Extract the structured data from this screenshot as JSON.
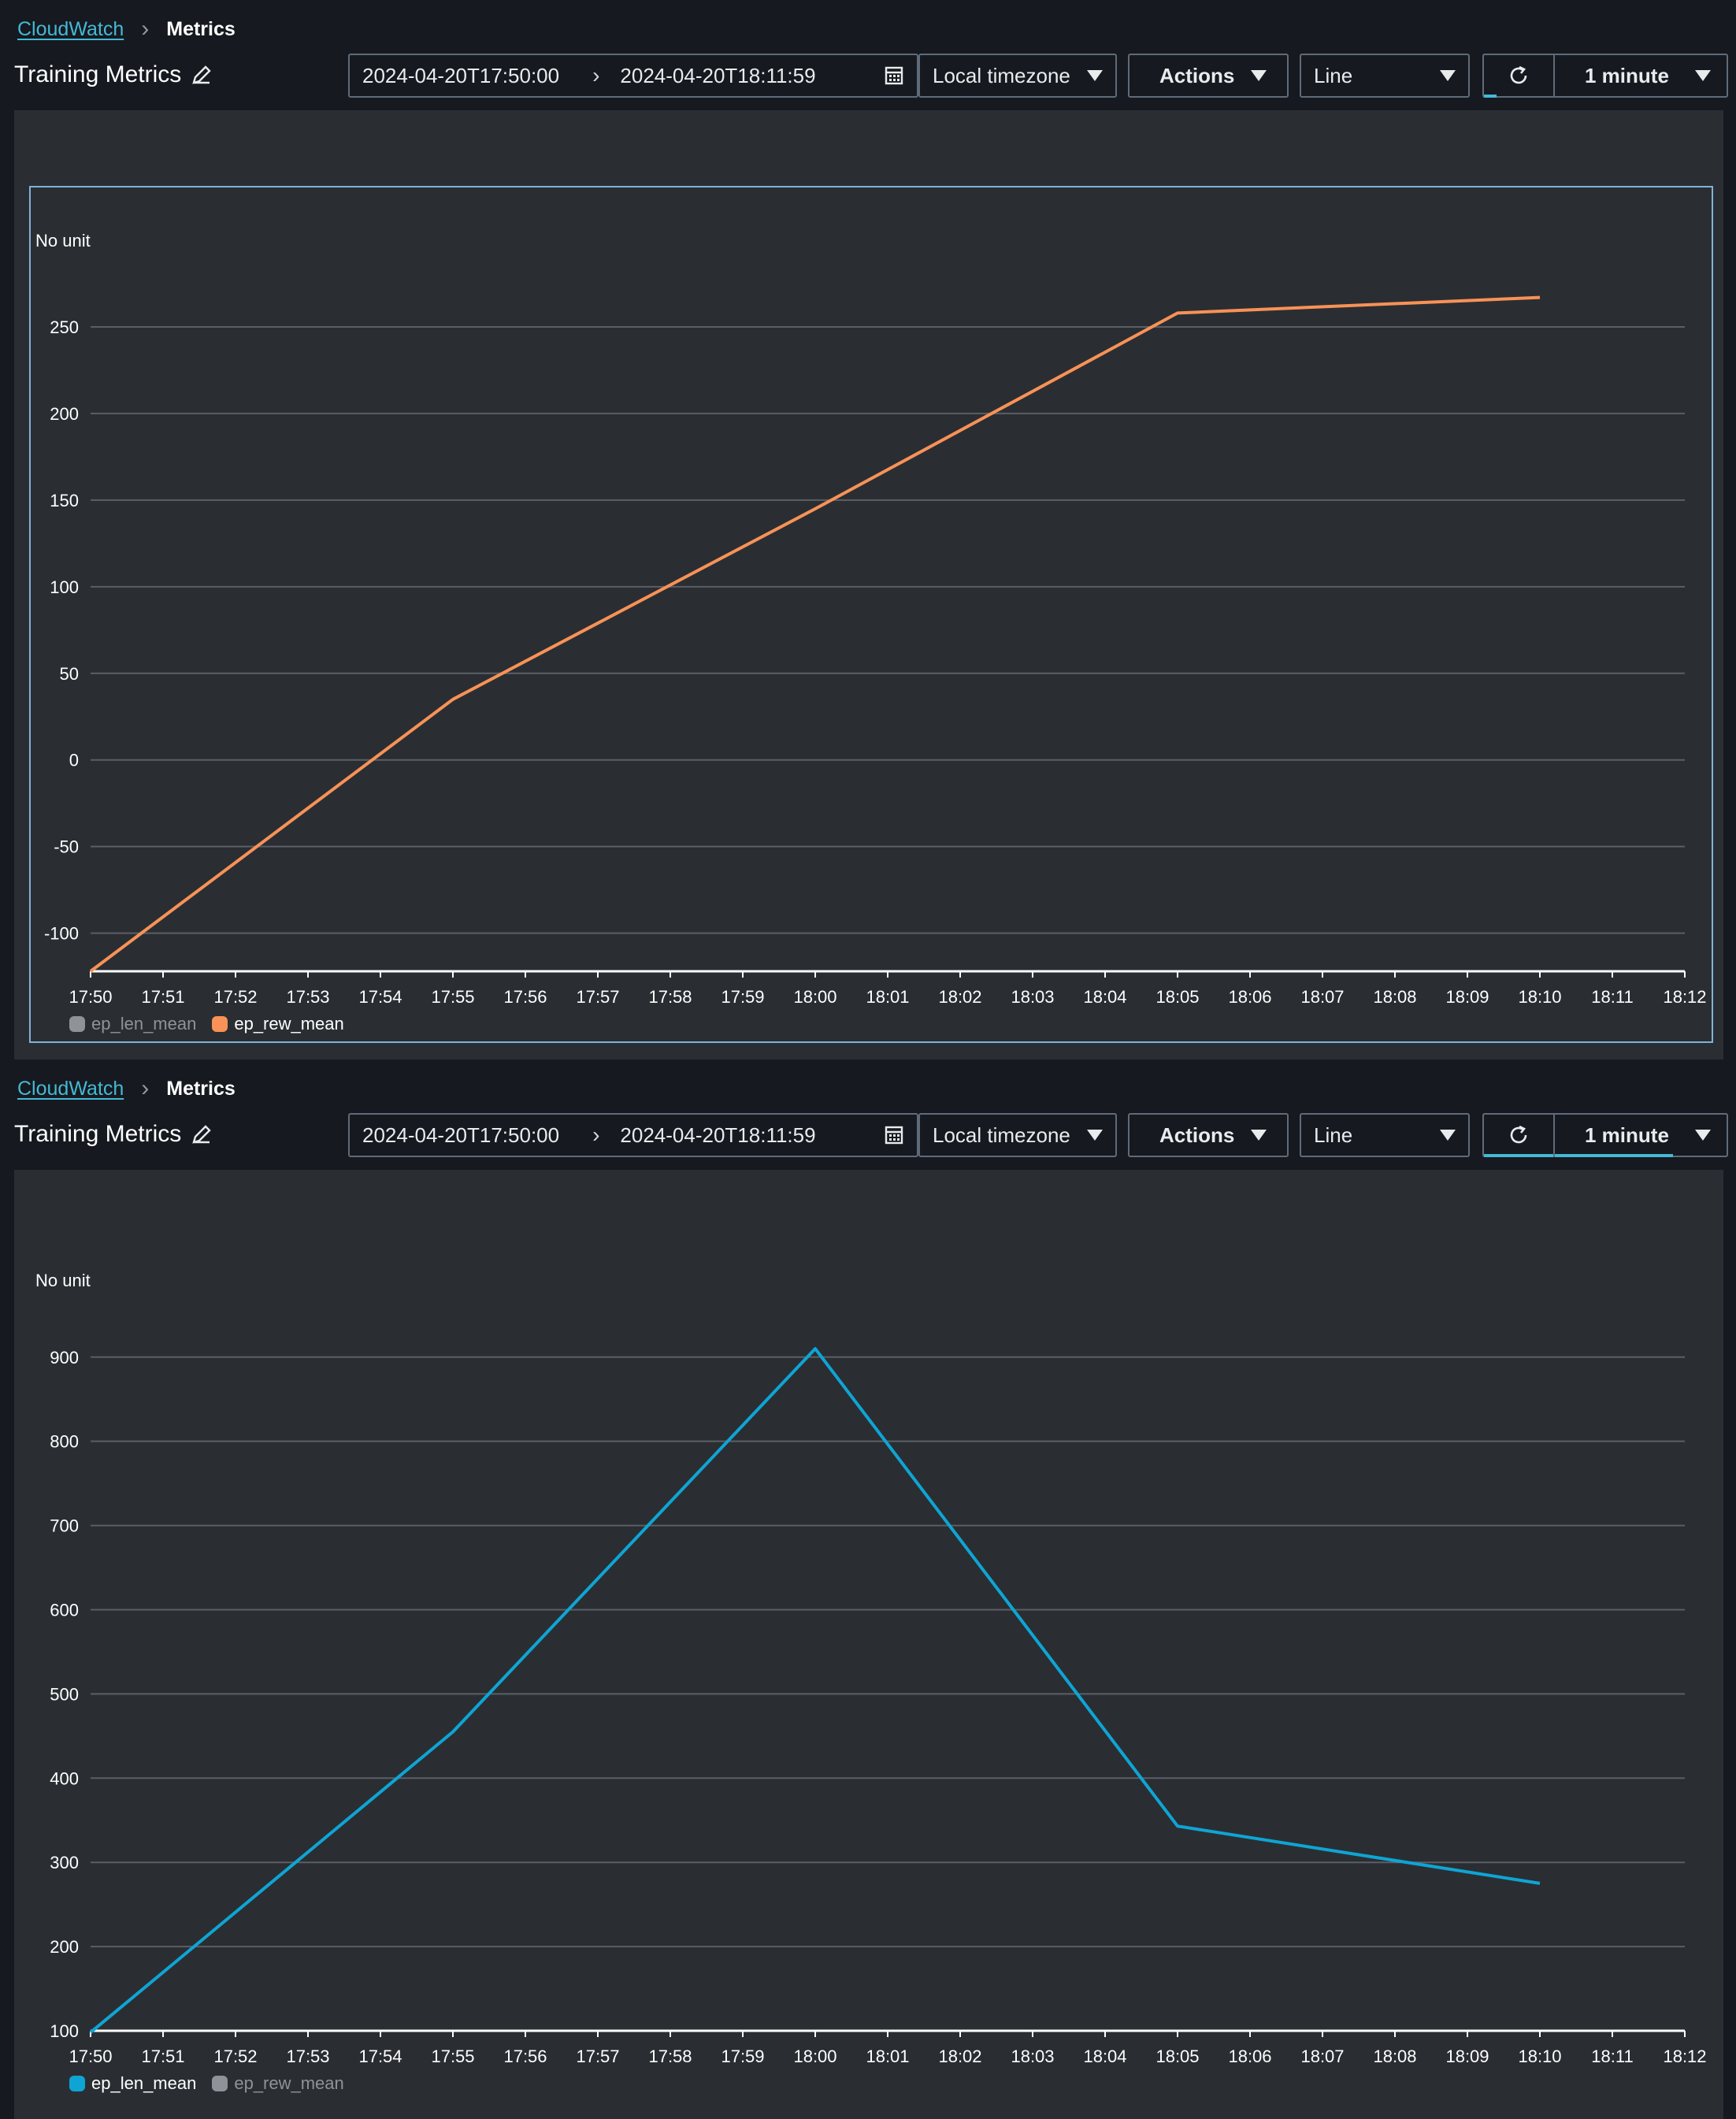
{
  "breadcrumb": {
    "root": "CloudWatch",
    "current": "Metrics"
  },
  "header": {
    "title": "Training Metrics",
    "start_time": "2024-04-20T17:50:00",
    "end_time": "2024-04-20T18:11:59",
    "timezone": "Local timezone",
    "actions_label": "Actions",
    "chart_type": "Line",
    "period": "1 minute"
  },
  "colors": {
    "ep_len_mean": "#0ea5d4",
    "ep_rew_mean": "#f89256",
    "inactive": "#8d9399"
  },
  "icons": [
    "edit-icon",
    "calendar-icon",
    "chevron-right-icon",
    "caret-down-icon",
    "refresh-icon"
  ],
  "chart_data": [
    {
      "type": "line",
      "unit_label": "No unit",
      "x_ticks": [
        "17:50",
        "17:51",
        "17:52",
        "17:53",
        "17:54",
        "17:55",
        "17:56",
        "17:57",
        "17:58",
        "17:59",
        "18:00",
        "18:01",
        "18:02",
        "18:03",
        "18:04",
        "18:05",
        "18:06",
        "18:07",
        "18:08",
        "18:09",
        "18:10",
        "18:11",
        "18:12"
      ],
      "y_ticks": [
        -100,
        -50,
        0,
        50,
        100,
        150,
        200,
        250
      ],
      "ylim": [
        -122,
        275
      ],
      "legend": [
        {
          "name": "ep_len_mean",
          "active": false
        },
        {
          "name": "ep_rew_mean",
          "active": true
        }
      ],
      "series": [
        {
          "name": "ep_rew_mean",
          "x": [
            "17:50",
            "17:55",
            "18:00",
            "18:05",
            "18:10"
          ],
          "values": [
            -122,
            35,
            145,
            258,
            267
          ]
        }
      ]
    },
    {
      "type": "line",
      "unit_label": "No unit",
      "x_ticks": [
        "17:50",
        "17:51",
        "17:52",
        "17:53",
        "17:54",
        "17:55",
        "17:56",
        "17:57",
        "17:58",
        "17:59",
        "18:00",
        "18:01",
        "18:02",
        "18:03",
        "18:04",
        "18:05",
        "18:06",
        "18:07",
        "18:08",
        "18:09",
        "18:10",
        "18:11",
        "18:12"
      ],
      "y_ticks": [
        100,
        200,
        300,
        400,
        500,
        600,
        700,
        800,
        900
      ],
      "ylim": [
        100,
        940
      ],
      "legend": [
        {
          "name": "ep_len_mean",
          "active": true
        },
        {
          "name": "ep_rew_mean",
          "active": false
        }
      ],
      "series": [
        {
          "name": "ep_len_mean",
          "x": [
            "17:50",
            "17:55",
            "18:00",
            "18:05",
            "18:10"
          ],
          "values": [
            98,
            455,
            910,
            343,
            275
          ]
        }
      ]
    }
  ]
}
